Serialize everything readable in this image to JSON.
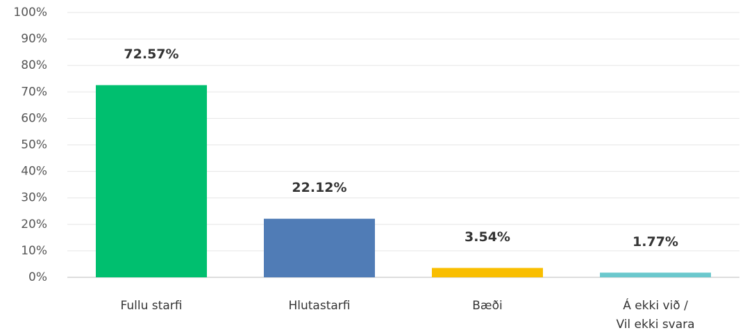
{
  "chart_data": {
    "type": "bar",
    "categories": [
      "Fullu starfi",
      "Hlutastarfi",
      "Bæði",
      "Á ekki við /\nVil ekki svara"
    ],
    "values": [
      72.57,
      22.12,
      3.54,
      1.77
    ],
    "value_labels": [
      "72.57%",
      "22.12%",
      "3.54%",
      "1.77%"
    ],
    "colors": [
      "#00bf6f",
      "#507cb6",
      "#f9be00",
      "#6bc8cd"
    ],
    "ylim": [
      0,
      100
    ],
    "yticks": [
      {
        "value": 0,
        "label": "0%"
      },
      {
        "value": 10,
        "label": "10%"
      },
      {
        "value": 20,
        "label": "20%"
      },
      {
        "value": 30,
        "label": "30%"
      },
      {
        "value": 40,
        "label": "40%"
      },
      {
        "value": 50,
        "label": "50%"
      },
      {
        "value": 60,
        "label": "60%"
      },
      {
        "value": 70,
        "label": "70%"
      },
      {
        "value": 80,
        "label": "80%"
      },
      {
        "value": 90,
        "label": "90%"
      },
      {
        "value": 100,
        "label": "100%"
      }
    ],
    "grid": true
  }
}
